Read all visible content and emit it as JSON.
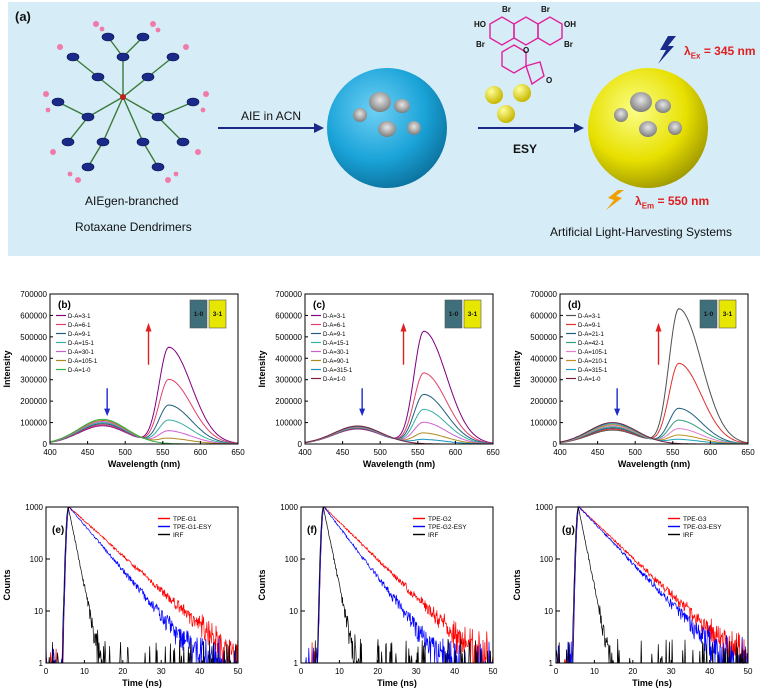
{
  "scheme": {
    "panel_label": "(a)",
    "step1_label": "AIE in ACN",
    "step2_label": "ESY",
    "left_caption_line1": "AIEgen-branched",
    "left_caption_line2": "Rotaxane Dendrimers",
    "right_caption": "Artificial Light-Harvesting Systems",
    "lambda_ex_text": "= 345 nm",
    "lambda_em_text": "= 550 nm",
    "lambda_sym": "λ",
    "ex_sub": "Ex",
    "em_sub": "Em",
    "dye_atoms": {
      "br1": "Br",
      "br2": "Br",
      "br3": "Br",
      "br4": "Br",
      "ho": "HO",
      "oh": "OH",
      "o_ring": "O",
      "o_lactone": "O"
    },
    "colors": {
      "sphere_blue": "#1aa3d8",
      "sphere_yellow": "#e8e000",
      "bg": "#d6edf8",
      "arrow": "#1a2a88",
      "lambda_red": "#e02020",
      "dye_magenta": "#e0209a"
    }
  },
  "chart_data": [
    {
      "type": "line",
      "id": "b",
      "panel": "(b)",
      "xlabel": "Wavelength (nm)",
      "ylabel": "Intensity",
      "xlim": [
        400,
        650
      ],
      "ylim": [
        0,
        700000
      ],
      "xticks": [
        "400",
        "450",
        "500",
        "550",
        "600",
        "650"
      ],
      "yticks": [
        "0",
        "100000",
        "200000",
        "300000",
        "400000",
        "500000",
        "600000",
        "700000"
      ],
      "vials": [
        "1-0",
        "3-1"
      ],
      "series": [
        {
          "name": "D-A=3-1",
          "color": "#800080",
          "peak_acceptor": 450000,
          "peak_donor": 85000
        },
        {
          "name": "D-A=6-1",
          "color": "#e0406a",
          "peak_acceptor": 300000,
          "peak_donor": 90000
        },
        {
          "name": "D-A=9-1",
          "color": "#20607a",
          "peak_acceptor": 180000,
          "peak_donor": 95000
        },
        {
          "name": "D-A=15-1",
          "color": "#38b0a0",
          "peak_acceptor": 110000,
          "peak_donor": 100000
        },
        {
          "name": "D-A=30-1",
          "color": "#d060d0",
          "peak_acceptor": 60000,
          "peak_donor": 105000
        },
        {
          "name": "D-A=105-1",
          "color": "#b08820",
          "peak_acceptor": 25000,
          "peak_donor": 110000
        },
        {
          "name": "D-A=1-0",
          "color": "#30b040",
          "peak_acceptor": 0,
          "peak_donor": 115000
        }
      ]
    },
    {
      "type": "line",
      "id": "c",
      "panel": "(c)",
      "xlabel": "Wavelength (nm)",
      "ylabel": "Intensity",
      "xlim": [
        400,
        650
      ],
      "ylim": [
        0,
        700000
      ],
      "xticks": [
        "400",
        "450",
        "500",
        "550",
        "600",
        "650"
      ],
      "yticks": [
        "0",
        "100000",
        "200000",
        "300000",
        "400000",
        "500000",
        "600000",
        "700000"
      ],
      "vials": [
        "1-0",
        "3-1"
      ],
      "series": [
        {
          "name": "D-A=3-1",
          "color": "#800080",
          "peak_acceptor": 525000,
          "peak_donor": 70000
        },
        {
          "name": "D-A=6-1",
          "color": "#e0406a",
          "peak_acceptor": 330000,
          "peak_donor": 72000
        },
        {
          "name": "D-A=9-1",
          "color": "#20607a",
          "peak_acceptor": 230000,
          "peak_donor": 74000
        },
        {
          "name": "D-A=15-1",
          "color": "#38b0a0",
          "peak_acceptor": 160000,
          "peak_donor": 76000
        },
        {
          "name": "D-A=30-1",
          "color": "#d060d0",
          "peak_acceptor": 100000,
          "peak_donor": 78000
        },
        {
          "name": "D-A=90-1",
          "color": "#b08820",
          "peak_acceptor": 50000,
          "peak_donor": 80000
        },
        {
          "name": "D-A=315-1",
          "color": "#1890c0",
          "peak_acceptor": 20000,
          "peak_donor": 82000
        },
        {
          "name": "D-A=1-0",
          "color": "#802040",
          "peak_acceptor": 0,
          "peak_donor": 84000
        }
      ]
    },
    {
      "type": "line",
      "id": "d",
      "panel": "(d)",
      "xlabel": "Wavelength (nm)",
      "ylabel": "Intensity",
      "xlim": [
        400,
        650
      ],
      "ylim": [
        0,
        700000
      ],
      "xticks": [
        "400",
        "450",
        "500",
        "550",
        "600",
        "650"
      ],
      "yticks": [
        "0",
        "100000",
        "200000",
        "300000",
        "400000",
        "500000",
        "600000",
        "700000"
      ],
      "vials": [
        "1-0",
        "3-1"
      ],
      "series": [
        {
          "name": "D-A=3-1",
          "color": "#505050",
          "peak_acceptor": 630000,
          "peak_donor": 65000
        },
        {
          "name": "D-A=9-1",
          "color": "#e03030",
          "peak_acceptor": 375000,
          "peak_donor": 70000
        },
        {
          "name": "D-A=21-1",
          "color": "#206080",
          "peak_acceptor": 165000,
          "peak_donor": 75000
        },
        {
          "name": "D-A=42-1",
          "color": "#30a080",
          "peak_acceptor": 110000,
          "peak_donor": 80000
        },
        {
          "name": "D-A=105-1",
          "color": "#e080d0",
          "peak_acceptor": 70000,
          "peak_donor": 85000
        },
        {
          "name": "D-A=210-1",
          "color": "#c09020",
          "peak_acceptor": 40000,
          "peak_donor": 90000
        },
        {
          "name": "D-A=315-1",
          "color": "#20a0c0",
          "peak_acceptor": 20000,
          "peak_donor": 95000
        },
        {
          "name": "D-A=1-0",
          "color": "#702040",
          "peak_acceptor": 0,
          "peak_donor": 100000
        }
      ]
    },
    {
      "type": "line",
      "id": "e",
      "panel": "(e)",
      "xlabel": "Time (ns)",
      "ylabel": "Counts",
      "yscale": "log",
      "xlim": [
        0,
        50
      ],
      "ylim": [
        1,
        1000
      ],
      "xticks": [
        "0",
        "10",
        "20",
        "30",
        "40",
        "50"
      ],
      "yticks": [
        "1",
        "10",
        "100",
        "1000"
      ],
      "series": [
        {
          "name": "TPE-G1",
          "color": "#ff0000",
          "peak": 1000,
          "peak_time": 6,
          "decay_ns": 6.5
        },
        {
          "name": "TPE-G1-ESY",
          "color": "#0000ff",
          "peak": 1000,
          "peak_time": 6,
          "decay_ns": 5.0
        },
        {
          "name": "IRF",
          "color": "#000000",
          "peak": 1000,
          "peak_time": 5.8,
          "decay_ns": 1.2
        }
      ]
    },
    {
      "type": "line",
      "id": "f",
      "panel": "(f)",
      "xlabel": "Time (ns)",
      "ylabel": "Counts",
      "yscale": "log",
      "xlim": [
        0,
        50
      ],
      "ylim": [
        1,
        1000
      ],
      "xticks": [
        "0",
        "10",
        "20",
        "30",
        "40",
        "50"
      ],
      "yticks": [
        "1",
        "10",
        "100",
        "1000"
      ],
      "series": [
        {
          "name": "TPE-G2",
          "color": "#ff0000",
          "peak": 1000,
          "peak_time": 6,
          "decay_ns": 6.0
        },
        {
          "name": "TPE-G2-ESY",
          "color": "#0000ff",
          "peak": 1000,
          "peak_time": 6,
          "decay_ns": 4.5
        },
        {
          "name": "IRF",
          "color": "#000000",
          "peak": 1000,
          "peak_time": 5.8,
          "decay_ns": 1.2
        }
      ]
    },
    {
      "type": "line",
      "id": "g",
      "panel": "(g)",
      "xlabel": "Time (ns)",
      "ylabel": "Counts",
      "yscale": "log",
      "xlim": [
        0,
        50
      ],
      "ylim": [
        1,
        1000
      ],
      "xticks": [
        "0",
        "10",
        "20",
        "30",
        "40",
        "50"
      ],
      "yticks": [
        "1",
        "10",
        "100",
        "1000"
      ],
      "series": [
        {
          "name": "TPE-G3",
          "color": "#ff0000",
          "peak": 1000,
          "peak_time": 6,
          "decay_ns": 6.2
        },
        {
          "name": "TPE-G3-ESY",
          "color": "#0000ff",
          "peak": 1000,
          "peak_time": 6,
          "decay_ns": 5.6
        },
        {
          "name": "IRF",
          "color": "#000000",
          "peak": 1000,
          "peak_time": 5.8,
          "decay_ns": 1.2
        }
      ]
    }
  ]
}
